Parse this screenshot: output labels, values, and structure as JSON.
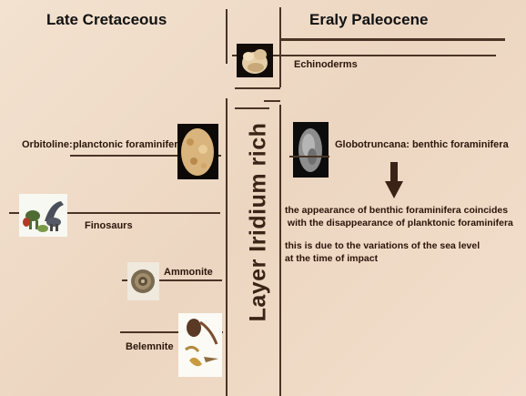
{
  "headings": {
    "left": "Late Cretaceous",
    "right": "Eraly Paleocene"
  },
  "layer_label": "Layer Iridium rich",
  "items": {
    "echinoderms": "Echinoderms",
    "orbitoline_name": "Orbitoline:",
    "orbitoline_desc": "planctonic foraminifera",
    "globotruncana": "Globotruncana: benthic foraminifera",
    "finosaurs": "Finosaurs",
    "ammonite": "Ammonite",
    "belemnite": "Belemnite"
  },
  "notes": {
    "coincidence": "the appearance of benthic foraminifera coincides\n with the disappearance of planktonic foraminifera",
    "cause": "this is due to the variations of the sea level\nat the time of impact"
  },
  "colors": {
    "background": "#f0ddc9",
    "lines": "#4a3426",
    "arrow": "#3a2316"
  }
}
